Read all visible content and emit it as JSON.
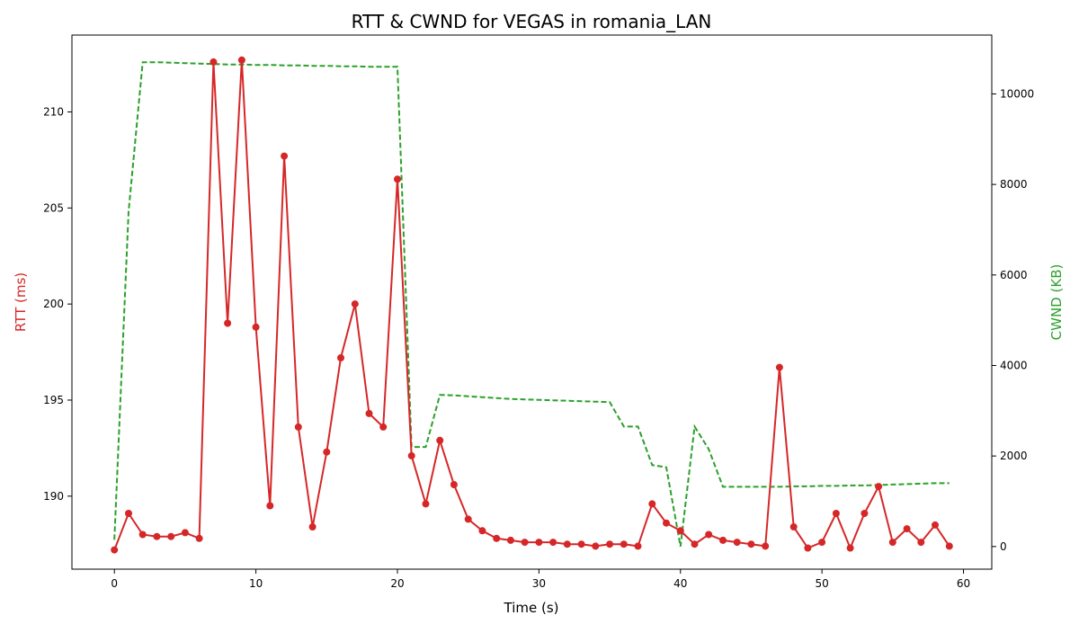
{
  "chart_data": {
    "type": "line",
    "title": "RTT & CWND for VEGAS in romania_LAN",
    "xlabel": "Time (s)",
    "ylabel_left": "RTT (ms)",
    "ylabel_right": "CWND (KB)",
    "xlim": [
      -3,
      62
    ],
    "ylim_left": [
      186.2,
      214.0
    ],
    "ylim_right": [
      -500,
      11300
    ],
    "x_ticks": [
      0,
      10,
      20,
      30,
      40,
      50,
      60
    ],
    "y_left_ticks": [
      190,
      195,
      200,
      205,
      210
    ],
    "y_right_ticks": [
      0,
      2000,
      4000,
      6000,
      8000,
      10000
    ],
    "grid": false,
    "colors": {
      "rtt": "#d62728",
      "cwnd": "#2ca02c",
      "axis": "#000000"
    },
    "series": [
      {
        "axis": "left",
        "style": "solid-markers",
        "x": [
          0,
          1,
          2,
          3,
          4,
          5,
          6,
          7,
          8,
          9,
          10,
          11,
          12,
          13,
          14,
          15,
          16,
          17,
          18,
          19,
          20,
          21,
          22,
          23,
          24,
          25,
          26,
          27,
          28,
          29,
          30,
          31,
          32,
          33,
          34,
          35,
          36,
          37,
          38,
          39,
          40,
          41,
          42,
          43,
          44,
          45,
          46,
          47,
          48,
          49,
          50,
          51,
          52,
          53,
          54,
          55,
          56,
          57,
          58,
          59
        ],
        "values": [
          187.2,
          189.1,
          188.0,
          187.9,
          187.9,
          188.1,
          187.8,
          212.6,
          199.0,
          212.7,
          198.8,
          189.5,
          207.7,
          193.6,
          188.4,
          192.3,
          197.2,
          200.0,
          194.3,
          193.6,
          206.5,
          192.1,
          189.6,
          192.9,
          190.6,
          188.8,
          188.2,
          187.8,
          187.7,
          187.6,
          187.6,
          187.6,
          187.5,
          187.5,
          187.4,
          187.5,
          187.5,
          187.4,
          189.6,
          188.6,
          188.2,
          187.5,
          188.0,
          187.7,
          187.6,
          187.5,
          187.4,
          196.7,
          188.4,
          187.3,
          187.6,
          189.1,
          187.3,
          189.1,
          190.5,
          187.6,
          188.3,
          187.6,
          188.5,
          187.4
        ]
      },
      {
        "axis": "right",
        "style": "dashed",
        "x": [
          0,
          1,
          2,
          3,
          4,
          5,
          6,
          7,
          8,
          9,
          10,
          11,
          12,
          13,
          14,
          15,
          16,
          17,
          18,
          19,
          20,
          21,
          22,
          23,
          24,
          25,
          26,
          27,
          28,
          29,
          30,
          31,
          32,
          33,
          34,
          35,
          36,
          37,
          38,
          39,
          40,
          41,
          42,
          43,
          44,
          45,
          46,
          47,
          48,
          49,
          50,
          51,
          52,
          53,
          54,
          55,
          56,
          57,
          58,
          59
        ],
        "values": [
          150,
          7400,
          10700,
          10700,
          10690,
          10680,
          10670,
          10660,
          10650,
          10650,
          10640,
          10640,
          10630,
          10630,
          10620,
          10620,
          10610,
          10610,
          10600,
          10600,
          10600,
          2200,
          2200,
          3350,
          3340,
          3320,
          3300,
          3280,
          3260,
          3250,
          3240,
          3230,
          3220,
          3210,
          3200,
          3190,
          2650,
          2650,
          1800,
          1750,
          0,
          2650,
          2150,
          1320,
          1320,
          1320,
          1320,
          1320,
          1330,
          1330,
          1340,
          1340,
          1350,
          1350,
          1360,
          1370,
          1380,
          1390,
          1400,
          1400
        ]
      }
    ]
  }
}
